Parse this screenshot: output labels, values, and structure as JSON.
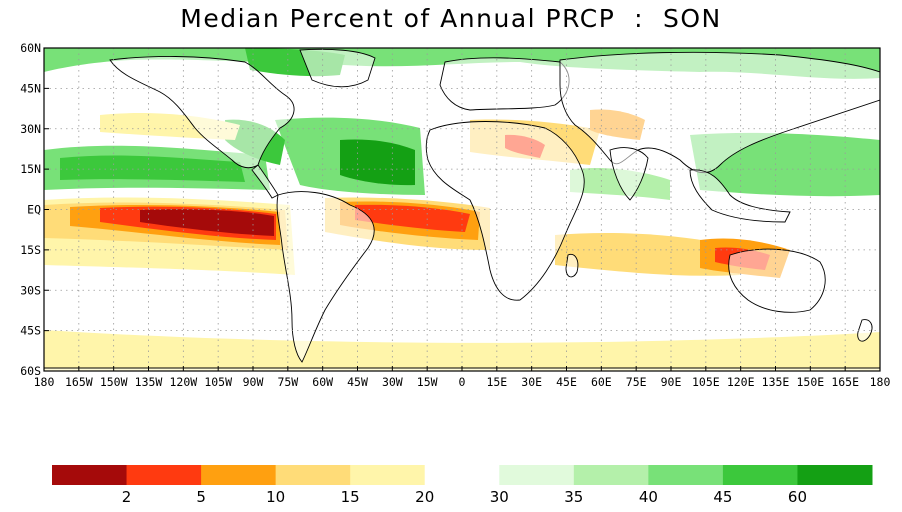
{
  "title": "Median Percent of Annual PRCP  :  SON",
  "lat_labels": [
    "60N",
    "45N",
    "30N",
    "15N",
    "EQ",
    "15S",
    "30S",
    "45S",
    "60S"
  ],
  "lon_labels": [
    "180",
    "165W",
    "150W",
    "135W",
    "120W",
    "105W",
    "90W",
    "75W",
    "60W",
    "45W",
    "30W",
    "15W",
    "0",
    "15E",
    "30E",
    "45E",
    "60E",
    "75E",
    "90E",
    "105E",
    "120E",
    "135E",
    "150E",
    "165E",
    "180"
  ],
  "legend": {
    "colors": [
      "#a50a0a",
      "#ff3a10",
      "#ffa010",
      "#ffdc78",
      "#fff5aa",
      "#ffffff",
      "#e1fadc",
      "#b4f0aa",
      "#78e178",
      "#3cc83c",
      "#14a014"
    ],
    "labels": [
      "2",
      "5",
      "10",
      "15",
      "20",
      "30",
      "35",
      "40",
      "45",
      "60"
    ]
  },
  "map_layers": {
    "dry_colors": [
      "#a50a0a",
      "#ff3a10",
      "#ffa010",
      "#ffdc78",
      "#fff5aa"
    ],
    "wet_colors": [
      "#e1fadc",
      "#b4f0aa",
      "#78e178",
      "#3cc83c",
      "#14a014"
    ],
    "land_outline": "#000000",
    "grid_color": "#9a9a9a"
  }
}
